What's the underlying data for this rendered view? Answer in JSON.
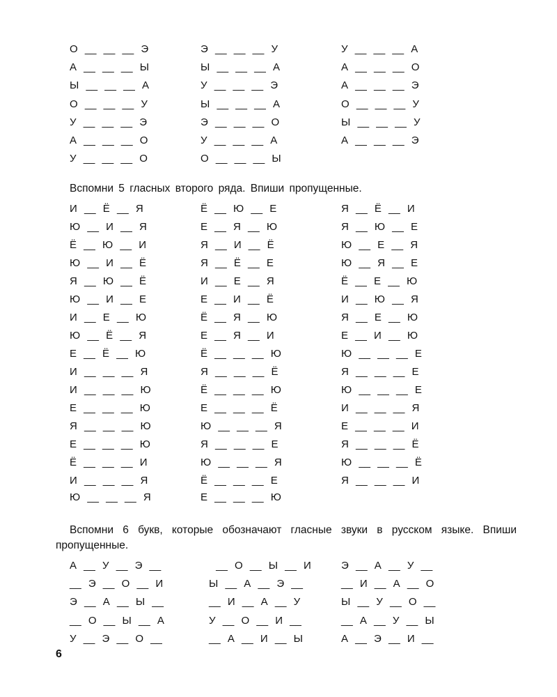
{
  "section1": {
    "columns": [
      [
        "О __ __ __ Э",
        "А __ __ __ Ы",
        "Ы __ __ __ А",
        "О __ __ __ У",
        "У __ __ __ Э",
        "А __ __ __ О",
        "У __ __ __ О"
      ],
      [
        "Э __ __ __ У",
        "Ы __ __ __ А",
        "У __ __ __ Э",
        "Ы __ __ __ А",
        "Э __ __ __ О",
        "У __ __ __ А",
        "О __ __ __ Ы"
      ],
      [
        "У __ __ __ А",
        "А __ __ __ О",
        "А __ __ __ Э",
        "О __ __ __ У",
        "Ы __ __ __ У",
        "А __ __ __ Э"
      ]
    ]
  },
  "section2": {
    "heading": "Вспомни 5 гласных второго ряда. Впиши пропущенные.",
    "columns": [
      [
        "И __ Ё __ Я",
        "Ю __ И __ Я",
        "Ё __ Ю __ И",
        "Ю __ И __ Ё",
        "Я __ Ю __ Ё",
        "Ю __ И __ Е",
        "И __ Е __ Ю",
        "Ю __ Ё __ Я",
        "Е __ Ё __ Ю",
        "И __ __ __ Я",
        "И __ __ __ Ю",
        "Е __ __ __ Ю",
        "Я __ __ __ Ю",
        "Е __ __ __ Ю",
        "Ё __ __ __ И",
        "И __ __ __ Я",
        "Ю __ __ __ Я"
      ],
      [
        "Ё __ Ю __ Е",
        "Е __ Я __ Ю",
        "Я __ И __ Ё",
        "Я __ Ё __ Е",
        "И __ Е __ Я",
        "Е __ И __ Ё",
        "Ё __ Я __ Ю",
        "Е __ Я __ И",
        "Ё __ __ __ Ю",
        "Я __ __ __ Ё",
        "Ё __ __ __ Ю",
        "Е __ __ __ Ё",
        "Ю __ __ __ Я",
        "Я __ __ __ Е",
        "Ю __ __ __ Я",
        "Ё __ __ __ Е",
        "Е __ __ __ Ю"
      ],
      [
        "Я __ Ё __ И",
        "Я __ Ю __ Е",
        "Ю __ Е __ Я",
        "Ю __ Я __ Е",
        "Ё __ Е __ Ю",
        "И __ Ю __ Я",
        "Я __ Е __ Ю",
        "Е __ И __ Ю",
        "Ю __ __ __ Е",
        "Я __ __ __ Е",
        "Ю __ __ __ Е",
        "И __ __ __ Я",
        "Е __ __ __ И",
        "Я __ __ __ Ё",
        "Ю __ __ __ Ё",
        "Я __ __ __ И"
      ]
    ]
  },
  "section3": {
    "heading": "Вспомни 6 букв, которые обозначают гласные звуки в русском языке. Впиши пропущенные.",
    "columns": [
      [
        "А __ У __ Э __",
        "__ Э __ О __ И",
        "Э __ А __ Ы __",
        "__ О __ Ы __ А",
        "У __ Э __ О __"
      ],
      [
        " __ О __ Ы __ И",
        "Ы __ А __ Э __",
        "__ И __ А __ У",
        "У __ О __ И __",
        "__ А __ И __ Ы"
      ],
      [
        "Э __ А __ У __",
        "__ И __ А __ О",
        "Ы __ У __ О __",
        "__ А __ У __ Ы",
        "А __ Э __ И __"
      ]
    ]
  },
  "page_number": "6"
}
